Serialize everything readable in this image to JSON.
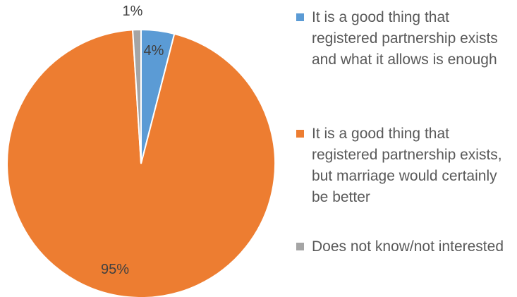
{
  "chart_data": {
    "type": "pie",
    "start_angle_deg": 0,
    "direction": "clockwise",
    "slices": [
      {
        "label": "It is a good thing that registered partnership exists and what it allows is enough",
        "value": 4,
        "data_label": "4%",
        "color": "#5b9bd5"
      },
      {
        "label": "It is a good thing that registered partnership exists, but marriage would certainly be better",
        "value": 95,
        "data_label": "95%",
        "color": "#ed7d31"
      },
      {
        "label": "Does not know/not interested",
        "value": 1,
        "data_label": "1%",
        "color": "#a5a5a5"
      }
    ],
    "legend_position": "right",
    "title": ""
  }
}
